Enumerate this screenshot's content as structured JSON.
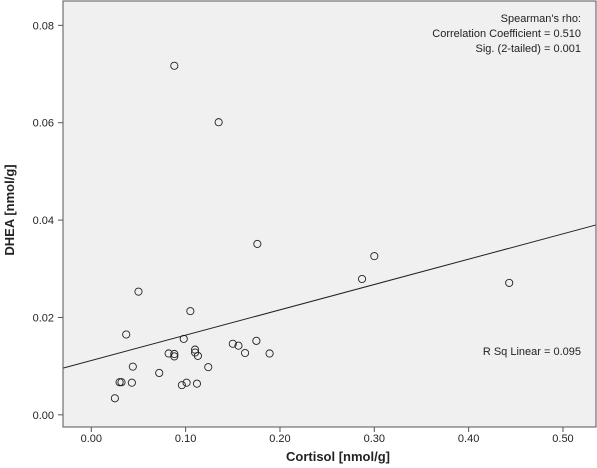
{
  "chart_data": {
    "type": "scatter",
    "title": "",
    "xlabel": "Cortisol [nmol/g]",
    "ylabel": "DHEA [nmol/g]",
    "xlim": [
      -0.03,
      0.535
    ],
    "ylim": [
      -0.0025,
      0.085
    ],
    "x_ticks": [
      0.0,
      0.1,
      0.2,
      0.3,
      0.4,
      0.5
    ],
    "x_tick_labels": [
      "0.00",
      "0.10",
      "0.20",
      "0.30",
      "0.40",
      "0.50"
    ],
    "y_ticks": [
      0.0,
      0.02,
      0.04,
      0.06,
      0.08
    ],
    "y_tick_labels": [
      "0.00",
      "0.02",
      "0.04",
      "0.06",
      "0.08"
    ],
    "grid": false,
    "marker": "open-circle",
    "points": [
      {
        "x": 0.088,
        "y": 0.0717
      },
      {
        "x": 0.135,
        "y": 0.0601
      },
      {
        "x": 0.176,
        "y": 0.0351
      },
      {
        "x": 0.3,
        "y": 0.0326
      },
      {
        "x": 0.287,
        "y": 0.0279
      },
      {
        "x": 0.443,
        "y": 0.0271
      },
      {
        "x": 0.05,
        "y": 0.0253
      },
      {
        "x": 0.105,
        "y": 0.0213
      },
      {
        "x": 0.037,
        "y": 0.0165
      },
      {
        "x": 0.098,
        "y": 0.0156
      },
      {
        "x": 0.175,
        "y": 0.0152
      },
      {
        "x": 0.15,
        "y": 0.0146
      },
      {
        "x": 0.156,
        "y": 0.0142
      },
      {
        "x": 0.11,
        "y": 0.0134
      },
      {
        "x": 0.11,
        "y": 0.0128
      },
      {
        "x": 0.163,
        "y": 0.0127
      },
      {
        "x": 0.082,
        "y": 0.0126
      },
      {
        "x": 0.088,
        "y": 0.0125
      },
      {
        "x": 0.189,
        "y": 0.0126
      },
      {
        "x": 0.088,
        "y": 0.012
      },
      {
        "x": 0.113,
        "y": 0.0121
      },
      {
        "x": 0.044,
        "y": 0.0099
      },
      {
        "x": 0.124,
        "y": 0.0098
      },
      {
        "x": 0.072,
        "y": 0.0086
      },
      {
        "x": 0.03,
        "y": 0.0067
      },
      {
        "x": 0.032,
        "y": 0.0067
      },
      {
        "x": 0.043,
        "y": 0.0066
      },
      {
        "x": 0.101,
        "y": 0.0066
      },
      {
        "x": 0.112,
        "y": 0.0064
      },
      {
        "x": 0.096,
        "y": 0.0061
      },
      {
        "x": 0.025,
        "y": 0.0034
      }
    ],
    "fit_line": {
      "type": "linear",
      "x0": -0.03,
      "y0": 0.0096,
      "x1": 0.535,
      "y1": 0.039
    },
    "annotations": {
      "spearman_title": "Spearman's rho:",
      "correlation": "Correlation Coefficient = 0.510",
      "significance": "Sig. (2-tailed) = 0.001",
      "r_sq": "R Sq Linear = 0.095"
    },
    "colors": {
      "plot_background": "#f0f0f0",
      "border": "#555555",
      "marker_stroke": "#222222",
      "fit_line": "#222222"
    }
  }
}
